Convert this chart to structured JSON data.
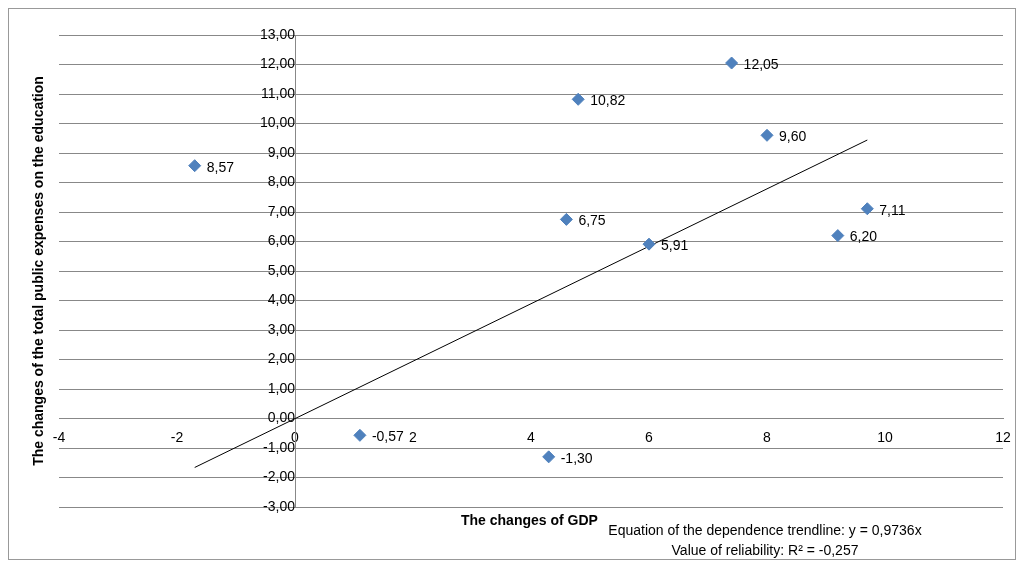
{
  "chart_data": {
    "type": "scatter",
    "xlabel": "The changes of GDP",
    "ylabel": "The changes of the total public expenses on the education",
    "annotations": [
      "Equation of the dependence trendline: y = 0,9736x",
      "Value of reliability: R² = -0,257"
    ],
    "xlim": [
      -4,
      12
    ],
    "xticks": [
      -4,
      -2,
      0,
      2,
      4,
      6,
      8,
      10,
      12
    ],
    "ylim": [
      -3,
      13
    ],
    "yticks": [
      {
        "value": -3,
        "label": "-3,00"
      },
      {
        "value": -2,
        "label": "-2,00"
      },
      {
        "value": -1,
        "label": "-1,00"
      },
      {
        "value": 0,
        "label": "0,00"
      },
      {
        "value": 1,
        "label": "1,00"
      },
      {
        "value": 2,
        "label": "2,00"
      },
      {
        "value": 3,
        "label": "3,00"
      },
      {
        "value": 4,
        "label": "4,00"
      },
      {
        "value": 5,
        "label": "5,00"
      },
      {
        "value": 6,
        "label": "6,00"
      },
      {
        "value": 7,
        "label": "7,00"
      },
      {
        "value": 8,
        "label": "8,00"
      },
      {
        "value": 9,
        "label": "9,00"
      },
      {
        "value": 10,
        "label": "10,00"
      },
      {
        "value": 11,
        "label": "11,00"
      },
      {
        "value": 12,
        "label": "12,00"
      },
      {
        "value": 13,
        "label": "13,00"
      }
    ],
    "grid": "y",
    "legend": false,
    "marker": "diamond",
    "series": [
      {
        "type": "scatter",
        "color": "#4f81bd",
        "x": [
          -1.7,
          1.1,
          4.3,
          4.6,
          4.8,
          6.0,
          7.4,
          8.0,
          9.2,
          9.7
        ],
        "values": [
          8.57,
          -0.57,
          -1.3,
          6.75,
          10.82,
          5.91,
          12.05,
          9.6,
          6.2,
          7.11
        ],
        "value_labels": [
          "8,57",
          "-0,57",
          "-1,30",
          "6,75",
          "10,82",
          "5,91",
          "12,05",
          "9,60",
          "6,20",
          "7,11"
        ]
      },
      {
        "type": "line",
        "color": "#000000",
        "x": [
          -1.7,
          9.7
        ],
        "values": [
          -1.66,
          9.44
        ],
        "marker": "none"
      }
    ]
  }
}
